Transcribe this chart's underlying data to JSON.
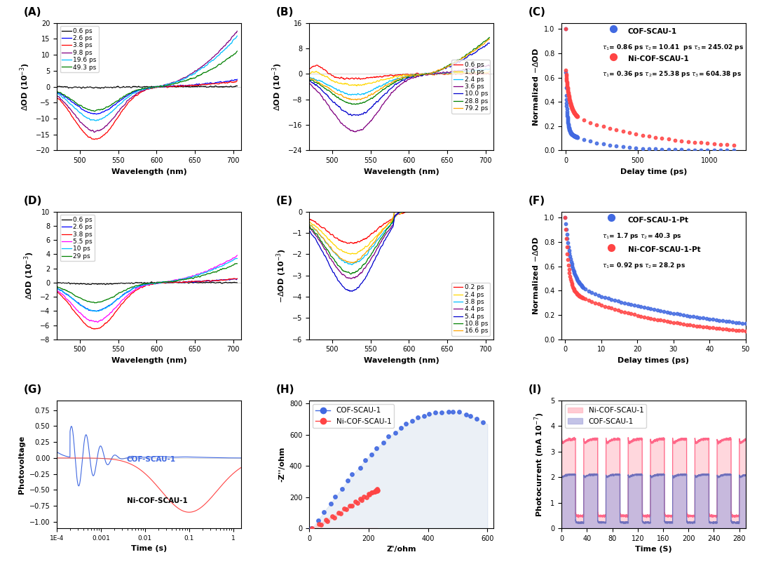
{
  "A": {
    "legend_labels": [
      "0.6 ps",
      "2.6 ps",
      "3.8 ps",
      "9.8 ps",
      "19.6 ps",
      "49.3 ps"
    ],
    "colors": [
      "#000000",
      "#0000FF",
      "#FF0000",
      "#800080",
      "#00BFFF",
      "#008000"
    ],
    "xlabel": "Wavelength (nm)",
    "ylabel": "\\u0394OD (10\\u207b\\u00b3)",
    "xlim": [
      470,
      710
    ],
    "ylim": [
      -20,
      20
    ]
  },
  "B": {
    "legend_labels": [
      "0.6 ps",
      "1.0 ps",
      "2.4 ps",
      "3.6 ps",
      "10.0 ps",
      "28.8 ps",
      "79.2 ps"
    ],
    "colors": [
      "#FF0000",
      "#FFD700",
      "#00BFFF",
      "#800080",
      "#0000CD",
      "#008000",
      "#FFA500"
    ],
    "xlabel": "Wavelength (nm)",
    "ylabel": "\\u0394OD (10\\u207b\\u00b3)",
    "xlim": [
      470,
      710
    ],
    "ylim": [
      -24,
      16
    ]
  },
  "C": {
    "label1": "COF-SCAU-1",
    "label2": "Ni-COF-SCAU-1",
    "tau1_1": "0.86",
    "tau2_1": "10.41",
    "tau3_1": "245.02",
    "tau1_2": "0.36",
    "tau2_2": "25.38",
    "tau3_2": "604.38",
    "color1": "#4169E1",
    "color2": "#FF4444",
    "xlabel": "Delay time (ps)",
    "ylabel": "Normalized -\\u0394OD",
    "xlim": [
      -30,
      1250
    ],
    "ylim": [
      0.0,
      1.05
    ]
  },
  "D": {
    "legend_labels": [
      "0.6 ps",
      "2.6 ps",
      "3.8 ps",
      "5.5 ps",
      "10 ps",
      "29 ps"
    ],
    "colors": [
      "#000000",
      "#0000FF",
      "#FF0000",
      "#FF00FF",
      "#00BFFF",
      "#008000"
    ],
    "xlabel": "Wavelength (nm)",
    "ylabel": "\\u0394OD (10\\u207b\\u00b3)",
    "xlim": [
      470,
      710
    ],
    "ylim": [
      -8,
      10
    ]
  },
  "E": {
    "legend_labels": [
      "0.2 ps",
      "2.4 ps",
      "3.8 ps",
      "4.4 ps",
      "5.4 ps",
      "10.8 ps",
      "16.6 ps"
    ],
    "colors": [
      "#FF0000",
      "#FFD700",
      "#00BFFF",
      "#800080",
      "#0000CD",
      "#008000",
      "#FFA500"
    ],
    "xlabel": "Wavelength (nm)",
    "ylabel": "-\\u0394OD (10\\u207b\\u00b3)",
    "xlim": [
      470,
      710
    ],
    "ylim": [
      -6,
      0
    ]
  },
  "F": {
    "label1": "COF-SCAU-1-Pt",
    "label2": "Ni-COF-SCAU-1-Pt",
    "tau1_1": "1.7",
    "tau2_1": "40.3",
    "tau1_2": "0.92",
    "tau2_2": "28.2",
    "color1": "#4169E1",
    "color2": "#FF4444",
    "xlabel": "Delay times (ps)",
    "ylabel": "Normalized -\\u0394OD",
    "xlim": [
      -1,
      50
    ],
    "ylim": [
      0.0,
      1.05
    ]
  },
  "G": {
    "label1": "COF-SCAU-1",
    "label2": "Ni-COF-SCAU-1",
    "color1": "#4169E1",
    "color2": "#FF4444",
    "xlabel": "Time (s)",
    "ylabel": "Photovoltage",
    "ylim": [
      -1.1,
      0.9
    ]
  },
  "H": {
    "label1": "COF-SCAU-1",
    "label2": "Ni-COF-SCAU-1",
    "color1": "#4169E1",
    "color2": "#FF4444",
    "fill_color1": "#B0C4DE",
    "fill_color2": "#FFB0B0",
    "xlabel": "Z'/ohm",
    "ylabel": "-Z''/ohm",
    "xlim": [
      0,
      620
    ],
    "ylim": [
      0,
      820
    ]
  },
  "I": {
    "label1": "Ni-COF-SCAU-1",
    "label2": "COF-SCAU-1",
    "color1": "#FFB6C1",
    "color2": "#AAAADD",
    "xlabel": "Time (S)",
    "ylabel": "Photocurrent (mA 10\\u207b\\u2077)",
    "xlim": [
      0,
      290
    ],
    "ylim": [
      0,
      5
    ]
  }
}
